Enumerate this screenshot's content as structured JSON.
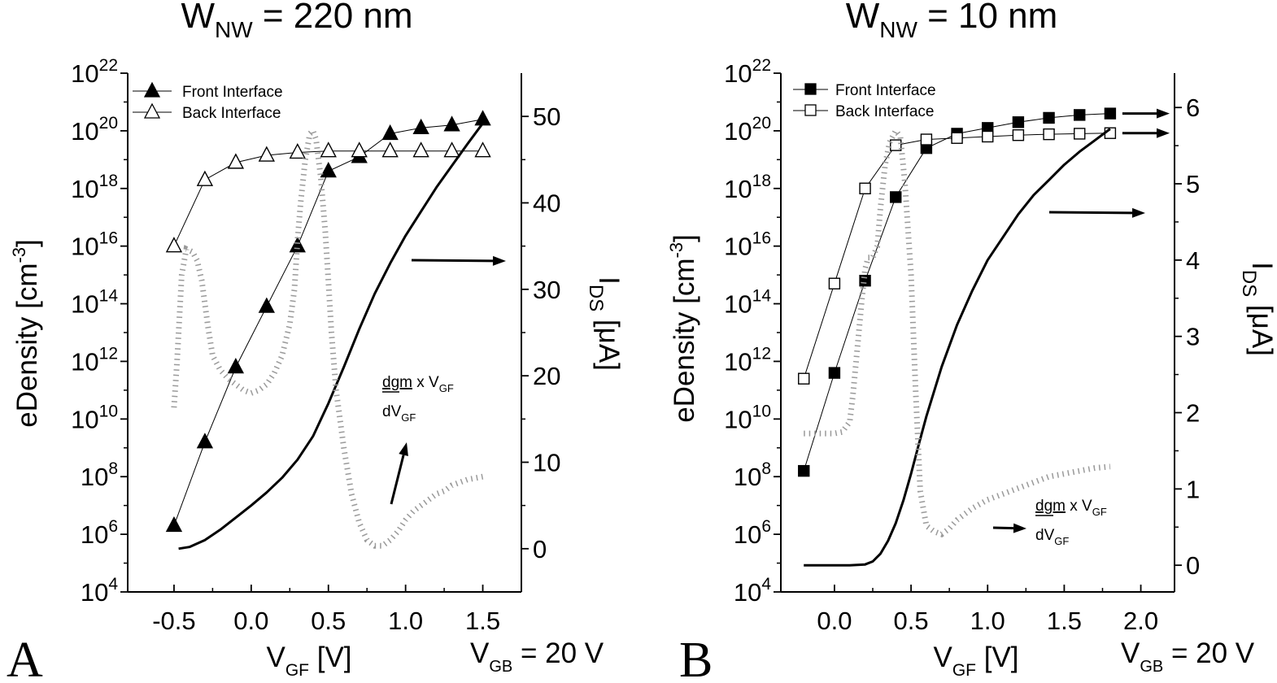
{
  "panels": [
    {
      "label": "A",
      "title_main": "W",
      "title_sub": "NW",
      "title_rest": " = 220 nm",
      "ylabel_main": "eDensity [cm",
      "ylabel_sup": "-3",
      "ylabel_end": "]",
      "y2label_main": "I",
      "y2label_sub": "DS",
      "y2label_rest": " [μA]",
      "xlabel_main": "V",
      "xlabel_sub": "GF",
      "xlabel_rest": " [V]",
      "vgb_main": "V",
      "vgb_sub": "GB",
      "vgb_rest": " = 20 V",
      "ann_num": "dgm",
      "ann_mid": " x V",
      "ann_num_sub": "GF",
      "ann_den": "dV",
      "ann_den_sub": "GF",
      "legend": [
        {
          "label": "Front Interface",
          "marker": "filled-triangle"
        },
        {
          "label": "Back Interface",
          "marker": "open-triangle"
        }
      ]
    },
    {
      "label": "B",
      "title_main": "W",
      "title_sub": "NW",
      "title_rest": " = 10 nm",
      "ylabel_main": "eDensity [cm",
      "ylabel_sup": "-3",
      "ylabel_end": "]",
      "y2label_main": "I",
      "y2label_sub": "DS",
      "y2label_rest": " [μA]",
      "xlabel_main": "V",
      "xlabel_sub": "GF",
      "xlabel_rest": " [V]",
      "vgb_main": "V",
      "vgb_sub": "GB",
      "vgb_rest": " = 20 V",
      "ann_num": "dgm",
      "ann_mid": " x V",
      "ann_num_sub": "GF",
      "ann_den": "dV",
      "ann_den_sub": "GF",
      "legend": [
        {
          "label": "Front Interface",
          "marker": "filled-square"
        },
        {
          "label": "Back Interface",
          "marker": "open-square"
        }
      ]
    }
  ],
  "chart_data": [
    {
      "type": "line",
      "title": "W_NW = 220 nm",
      "xlabel": "V_GF [V]",
      "ylabel": "eDensity [cm^-3]",
      "y2label": "I_DS [μA]",
      "xlim": [
        -0.8,
        1.75
      ],
      "ylim_log10": [
        4,
        22
      ],
      "y2lim": [
        -5,
        55
      ],
      "x_ticks": [
        "-0.5",
        "0.0",
        "0.5",
        "1.0",
        "1.5"
      ],
      "x_tick_values": [
        -0.5,
        0.0,
        0.5,
        1.0,
        1.5
      ],
      "y_tick_exponents": [
        4,
        6,
        8,
        10,
        12,
        14,
        16,
        18,
        20,
        22
      ],
      "y2_ticks": [
        "0",
        "10",
        "20",
        "30",
        "40",
        "50"
      ],
      "y2_tick_values": [
        0,
        10,
        20,
        30,
        40,
        50
      ],
      "series": [
        {
          "name": "Front Interface",
          "axis": "left",
          "marker": "filled-triangle",
          "x": [
            -0.5,
            -0.3,
            -0.1,
            0.1,
            0.3,
            0.5,
            0.7,
            0.9,
            1.1,
            1.3,
            1.5
          ],
          "log10_y": [
            6.3,
            9.2,
            11.8,
            13.9,
            16.0,
            18.6,
            19.1,
            19.9,
            20.1,
            20.2,
            20.4
          ]
        },
        {
          "name": "Back Interface",
          "axis": "left",
          "marker": "open-triangle",
          "x": [
            -0.5,
            -0.3,
            -0.1,
            0.1,
            0.3,
            0.5,
            0.7,
            0.9,
            1.1,
            1.3,
            1.5
          ],
          "log10_y": [
            16.0,
            18.3,
            18.9,
            19.15,
            19.25,
            19.3,
            19.3,
            19.3,
            19.3,
            19.3,
            19.3
          ]
        },
        {
          "axis": "right",
          "style": "solid",
          "x": [
            -0.47,
            -0.4,
            -0.3,
            -0.2,
            -0.1,
            0.0,
            0.1,
            0.2,
            0.3,
            0.4,
            0.5,
            0.6,
            0.7,
            0.8,
            0.9,
            1.0,
            1.1,
            1.2,
            1.3,
            1.4,
            1.5
          ],
          "y": [
            0,
            0.2,
            1.0,
            2.2,
            3.6,
            5.0,
            6.5,
            8.2,
            10.3,
            13.0,
            16.8,
            21.0,
            25.4,
            29.5,
            33.0,
            36.2,
            39.0,
            41.8,
            44.3,
            46.8,
            49.2
          ]
        },
        {
          "axis": "left",
          "style": "dotted",
          "x": [
            -0.5,
            -0.48,
            -0.45,
            -0.42,
            -0.38,
            -0.35,
            -0.32,
            -0.3,
            -0.28,
            -0.25,
            -0.2,
            -0.15,
            -0.1,
            -0.05,
            0.0,
            0.05,
            0.1,
            0.15,
            0.2,
            0.25,
            0.28,
            0.3,
            0.32,
            0.35,
            0.38,
            0.4,
            0.42,
            0.45,
            0.48,
            0.5,
            0.52,
            0.55,
            0.6,
            0.65,
            0.7,
            0.75,
            0.8,
            0.85,
            0.9,
            0.95,
            1.0,
            1.05,
            1.1,
            1.15,
            1.2,
            1.25,
            1.3,
            1.35,
            1.4,
            1.5
          ],
          "log10_y": [
            10.4,
            12.0,
            15.0,
            15.9,
            15.8,
            15.5,
            14.8,
            14.0,
            13.2,
            12.2,
            11.7,
            11.4,
            11.2,
            11.0,
            10.9,
            11.0,
            11.2,
            11.6,
            12.2,
            13.3,
            14.5,
            16.2,
            17.5,
            19.0,
            19.9,
            20.0,
            19.7,
            18.4,
            16.5,
            14.8,
            13.0,
            11.0,
            9.0,
            7.4,
            6.4,
            5.8,
            5.6,
            5.6,
            5.8,
            6.1,
            6.5,
            6.8,
            7.0,
            7.2,
            7.4,
            7.5,
            7.7,
            7.8,
            7.9,
            8.0
          ]
        }
      ]
    },
    {
      "type": "line",
      "title": "W_NW = 10 nm",
      "xlabel": "V_GF [V]",
      "ylabel": "eDensity [cm^-3]",
      "y2label": "I_DS [μA]",
      "xlim": [
        -0.35,
        2.22
      ],
      "ylim_log10": [
        4,
        22
      ],
      "y2lim": [
        -0.35,
        6.45
      ],
      "x_ticks": [
        "0.0",
        "0.5",
        "1.0",
        "1.5",
        "2.0"
      ],
      "x_tick_values": [
        0.0,
        0.5,
        1.0,
        1.5,
        2.0
      ],
      "y_tick_exponents": [
        4,
        6,
        8,
        10,
        12,
        14,
        16,
        18,
        20,
        22
      ],
      "y2_ticks": [
        "0",
        "1",
        "2",
        "3",
        "4",
        "5",
        "6"
      ],
      "y2_tick_values": [
        0,
        1,
        2,
        3,
        4,
        5,
        6
      ],
      "series": [
        {
          "name": "Front Interface",
          "axis": "left",
          "marker": "filled-square",
          "x": [
            -0.2,
            0.0,
            0.2,
            0.4,
            0.6,
            0.8,
            1.0,
            1.2,
            1.4,
            1.6,
            1.8
          ],
          "log10_y": [
            8.2,
            11.6,
            14.8,
            17.7,
            19.4,
            19.9,
            20.1,
            20.3,
            20.45,
            20.55,
            20.6
          ]
        },
        {
          "name": "Back Interface",
          "axis": "left",
          "marker": "open-square",
          "x": [
            -0.2,
            0.0,
            0.2,
            0.4,
            0.6,
            0.8,
            1.0,
            1.2,
            1.4,
            1.6,
            1.8
          ],
          "log10_y": [
            11.4,
            14.7,
            18.0,
            19.5,
            19.7,
            19.75,
            19.8,
            19.85,
            19.88,
            19.9,
            19.92
          ]
        },
        {
          "axis": "right",
          "style": "solid",
          "x": [
            -0.2,
            0.0,
            0.1,
            0.2,
            0.25,
            0.3,
            0.35,
            0.4,
            0.45,
            0.5,
            0.55,
            0.6,
            0.7,
            0.8,
            0.9,
            1.0,
            1.1,
            1.2,
            1.3,
            1.4,
            1.5,
            1.6,
            1.7,
            1.8
          ],
          "y": [
            0,
            0,
            0,
            0.01,
            0.05,
            0.15,
            0.32,
            0.55,
            0.85,
            1.2,
            1.58,
            1.95,
            2.6,
            3.15,
            3.6,
            4.0,
            4.3,
            4.6,
            4.85,
            5.05,
            5.25,
            5.42,
            5.57,
            5.72
          ]
        },
        {
          "axis": "left",
          "style": "dotted",
          "x": [
            -0.2,
            -0.1,
            0.0,
            0.05,
            0.1,
            0.12,
            0.15,
            0.18,
            0.2,
            0.22,
            0.25,
            0.28,
            0.3,
            0.33,
            0.36,
            0.4,
            0.43,
            0.46,
            0.5,
            0.53,
            0.56,
            0.6,
            0.65,
            0.7,
            0.75,
            0.8,
            0.9,
            1.0,
            1.1,
            1.2,
            1.3,
            1.4,
            1.5,
            1.6,
            1.7,
            1.8
          ],
          "log10_y": [
            9.5,
            9.5,
            9.5,
            9.55,
            9.9,
            10.8,
            12.5,
            14.2,
            15.2,
            15.6,
            15.6,
            16.0,
            17.3,
            18.8,
            19.6,
            20.0,
            19.8,
            18.2,
            15.0,
            11.0,
            7.5,
            6.3,
            6.1,
            6.0,
            6.2,
            6.5,
            6.9,
            7.2,
            7.4,
            7.6,
            7.8,
            8.0,
            8.1,
            8.2,
            8.3,
            8.35
          ]
        }
      ]
    }
  ]
}
